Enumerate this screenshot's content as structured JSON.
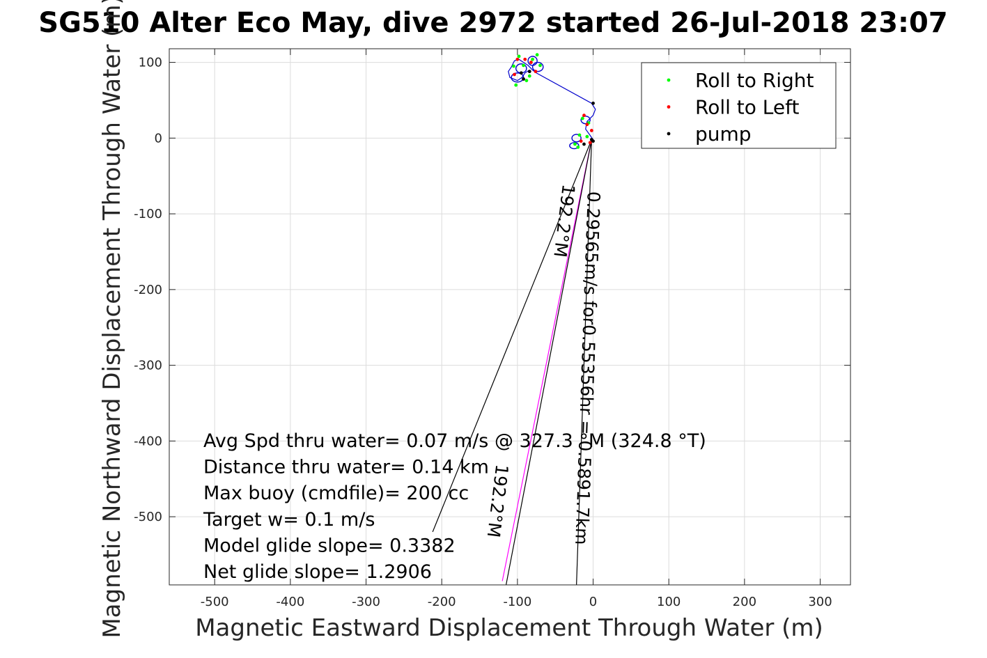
{
  "chart_data": {
    "type": "scatter",
    "title": "SG510 Alter Eco May, dive 2972 started 26-Jul-2018 23:07",
    "xlabel": "Magnetic Eastward Displacement Through Water (m)",
    "ylabel": "Magnetic Northward Displacement Through Water (m)",
    "xlim": [
      -560,
      340
    ],
    "ylim": [
      -590,
      118
    ],
    "x_ticks": [
      -500,
      -400,
      -300,
      -200,
      -100,
      0,
      100,
      200,
      300
    ],
    "y_ticks": [
      -500,
      -400,
      -300,
      -200,
      -100,
      0,
      100
    ],
    "grid": true,
    "legend": {
      "position": "top-right",
      "entries": [
        {
          "label": "Roll to Right",
          "color": "#00ff00"
        },
        {
          "label": "Roll to Left",
          "color": "#ff0000"
        },
        {
          "label": "pump",
          "color": "#000000"
        }
      ]
    },
    "track": {
      "color": "#0000cc",
      "points": [
        [
          0,
          -2
        ],
        [
          -5,
          5
        ],
        [
          -10,
          12
        ],
        [
          -8,
          22
        ],
        [
          0,
          30
        ],
        [
          3,
          38
        ],
        [
          -2,
          46
        ],
        [
          -75,
          86
        ],
        [
          -80,
          90
        ],
        [
          -86,
          96
        ],
        [
          -92,
          100
        ],
        [
          -98,
          104
        ],
        [
          -104,
          102
        ],
        [
          -108,
          94
        ],
        [
          -112,
          88
        ],
        [
          -110,
          80
        ],
        [
          -100,
          76
        ],
        [
          -94,
          80
        ],
        [
          -90,
          86
        ],
        [
          -84,
          90
        ]
      ]
    },
    "track_loops": [
      {
        "center": [
          -100,
          80
        ],
        "radius": [
          8,
          6
        ]
      },
      {
        "center": [
          -95,
          92
        ],
        "radius": [
          7,
          6
        ]
      },
      {
        "center": [
          -80,
          102
        ],
        "radius": [
          6,
          6
        ]
      },
      {
        "center": [
          -73,
          94
        ],
        "radius": [
          7,
          6
        ]
      },
      {
        "center": [
          -10,
          24
        ],
        "radius": [
          6,
          5
        ]
      },
      {
        "center": [
          -22,
          0
        ],
        "radius": [
          6,
          5
        ]
      },
      {
        "center": [
          -25,
          -10
        ],
        "radius": [
          6,
          4
        ]
      }
    ],
    "series": [
      {
        "name": "Roll to Right",
        "color": "#00ff00",
        "points": [
          [
            -105,
            95
          ],
          [
            -98,
            108
          ],
          [
            -92,
            96
          ],
          [
            -80,
            104
          ],
          [
            -74,
            110
          ],
          [
            -70,
            96
          ],
          [
            -84,
            82
          ],
          [
            -88,
            76
          ],
          [
            -102,
            70
          ],
          [
            -14,
            26
          ],
          [
            -6,
            20
          ],
          [
            -18,
            4
          ],
          [
            -24,
            -8
          ],
          [
            -20,
            -12
          ],
          [
            -8,
            2
          ]
        ]
      },
      {
        "name": "Roll to Left",
        "color": "#ff0000",
        "points": [
          [
            -100,
            104
          ],
          [
            -90,
            104
          ],
          [
            -82,
            100
          ],
          [
            -76,
            88
          ],
          [
            -104,
            84
          ],
          [
            -8,
            18
          ],
          [
            -2,
            10
          ],
          [
            -4,
            -6
          ],
          [
            -16,
            -4
          ],
          [
            -12,
            30
          ]
        ]
      },
      {
        "name": "pump",
        "color": "#000000",
        "points": [
          [
            -95,
            86
          ],
          [
            -84,
            88
          ],
          [
            -92,
            78
          ],
          [
            0,
            46
          ],
          [
            -2,
            -2
          ],
          [
            -12,
            -8
          ],
          [
            0,
            -4
          ]
        ]
      }
    ],
    "heading_lines": [
      {
        "from": [
          -2,
          -2
        ],
        "to": [
          -212,
          -520
        ],
        "color": "#000000"
      },
      {
        "from": [
          -2,
          -2
        ],
        "to": [
          -120,
          -585
        ],
        "color": "#ff00ff"
      },
      {
        "from": [
          -2,
          -2
        ],
        "to": [
          -22,
          -590
        ],
        "color": "#000000"
      },
      {
        "from": [
          -2,
          -2
        ],
        "to": [
          -115,
          -590
        ],
        "color": "#000000"
      }
    ],
    "rotated_labels": [
      {
        "text": "0.29565m/s for0.55356hr = 0.5891.7km",
        "anchor": [
          -7,
          -70
        ],
        "angle": 92
      },
      {
        "text": "192.2°M",
        "anchor": [
          -40,
          -60
        ],
        "angle": 97
      },
      {
        "text": "192.2°M",
        "anchor": [
          -128,
          -430
        ],
        "angle": 97
      }
    ],
    "annotations": [
      "Avg Spd thru water=  0.07 m/s @ 327.3 °M (324.8 °T)",
      "Distance thru water=  0.14 km",
      "Max buoy (cmdfile)= 200 cc",
      "Target w= 0.1 m/s",
      "Model glide slope= 0.3382",
      "Net glide slope= 1.2906"
    ]
  }
}
